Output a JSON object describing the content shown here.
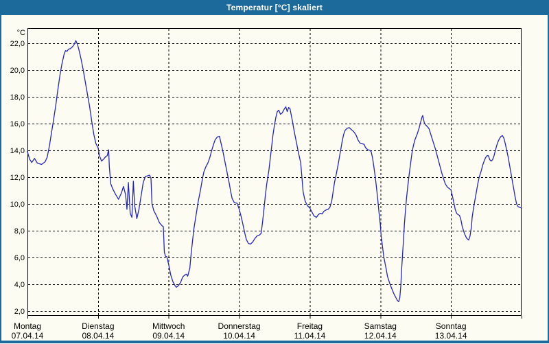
{
  "window": {
    "title": "Temperatur [°C] skaliert",
    "title_bar_color": "#1c699b",
    "border_color": "#1c699b",
    "background_color": "#fcfcf2"
  },
  "chart_data": {
    "type": "line",
    "title": "Temperatur [°C] skaliert",
    "y_unit_label": "°C",
    "ylabel": "Temperatur",
    "xlabel": "",
    "ylim": [
      1.6,
      23.1
    ],
    "y_ticks": [
      2,
      4,
      6,
      8,
      10,
      12,
      14,
      16,
      18,
      20,
      22
    ],
    "y_tick_labels": [
      "2,0",
      "4,0",
      "6,0",
      "8,0",
      "10,0",
      "12,0",
      "14,0",
      "16,0",
      "18,0",
      "20,0",
      "22,0"
    ],
    "grid": "dashed-black",
    "legend": "none",
    "line_color": "#2424bd",
    "x_categories": [
      {
        "name": "Montag",
        "date": "07.04.14"
      },
      {
        "name": "Dienstag",
        "date": "08.04.14"
      },
      {
        "name": "Mittwoch",
        "date": "09.04.14"
      },
      {
        "name": "Donnerstag",
        "date": "10.04.14"
      },
      {
        "name": "Freitag",
        "date": "11.04.14"
      },
      {
        "name": "Samstag",
        "date": "12.04.14"
      },
      {
        "name": "Sonntag",
        "date": "13.04.14"
      }
    ],
    "series": [
      {
        "name": "Temperatur [°C]",
        "x_unit": "days_since_monday_midnight",
        "points": [
          [
            0,
            13.9
          ],
          [
            0.03,
            13.35
          ],
          [
            0.06,
            13.1
          ],
          [
            0.1,
            13.4
          ],
          [
            0.14,
            13.05
          ],
          [
            0.2,
            12.95
          ],
          [
            0.25,
            13.15
          ],
          [
            0.28,
            13.5
          ],
          [
            0.31,
            14.3
          ],
          [
            0.34,
            15.3
          ],
          [
            0.37,
            16.3
          ],
          [
            0.4,
            17.3
          ],
          [
            0.43,
            18.5
          ],
          [
            0.46,
            19.6
          ],
          [
            0.49,
            20.5
          ],
          [
            0.52,
            21.2
          ],
          [
            0.54,
            21.45
          ],
          [
            0.56,
            21.4
          ],
          [
            0.58,
            21.55
          ],
          [
            0.61,
            21.6
          ],
          [
            0.64,
            21.75
          ],
          [
            0.66,
            21.9
          ],
          [
            0.685,
            22.2
          ],
          [
            0.71,
            21.9
          ],
          [
            0.73,
            21.5
          ],
          [
            0.76,
            20.8
          ],
          [
            0.79,
            20.0
          ],
          [
            0.82,
            19.1
          ],
          [
            0.85,
            18.2
          ],
          [
            0.88,
            17.3
          ],
          [
            0.91,
            16.2
          ],
          [
            0.94,
            15.2
          ],
          [
            0.97,
            14.5
          ],
          [
            1.0,
            14.2
          ],
          [
            1.02,
            13.6
          ],
          [
            1.05,
            13.2
          ],
          [
            1.08,
            13.35
          ],
          [
            1.11,
            13.55
          ],
          [
            1.13,
            13.6
          ],
          [
            1.15,
            14.05
          ],
          [
            1.16,
            12.8
          ],
          [
            1.18,
            11.5
          ],
          [
            1.21,
            11.1
          ],
          [
            1.25,
            10.7
          ],
          [
            1.29,
            10.35
          ],
          [
            1.33,
            10.8
          ],
          [
            1.36,
            11.3
          ],
          [
            1.39,
            10.7
          ],
          [
            1.41,
            9.6
          ],
          [
            1.43,
            11.6
          ],
          [
            1.455,
            9.3
          ],
          [
            1.48,
            9.0
          ],
          [
            1.5,
            11.7
          ],
          [
            1.52,
            9.85
          ],
          [
            1.55,
            8.9
          ],
          [
            1.58,
            9.6
          ],
          [
            1.61,
            10.6
          ],
          [
            1.64,
            11.6
          ],
          [
            1.67,
            12.05
          ],
          [
            1.7,
            12.1
          ],
          [
            1.73,
            12.15
          ],
          [
            1.75,
            11.9
          ],
          [
            1.765,
            10.0
          ],
          [
            1.79,
            9.5
          ],
          [
            1.83,
            9.1
          ],
          [
            1.87,
            8.6
          ],
          [
            1.91,
            8.35
          ],
          [
            1.925,
            8.3
          ],
          [
            1.94,
            6.4
          ],
          [
            1.955,
            6.1
          ],
          [
            1.975,
            6.05
          ],
          [
            2.0,
            5.5
          ],
          [
            2.03,
            4.7
          ],
          [
            2.06,
            4.2
          ],
          [
            2.09,
            3.9
          ],
          [
            2.11,
            3.78
          ],
          [
            2.14,
            3.9
          ],
          [
            2.17,
            4.15
          ],
          [
            2.2,
            4.55
          ],
          [
            2.23,
            4.7
          ],
          [
            2.255,
            4.75
          ],
          [
            2.27,
            4.6
          ],
          [
            2.3,
            5.2
          ],
          [
            2.32,
            6.3
          ],
          [
            2.34,
            7.3
          ],
          [
            2.36,
            8.2
          ],
          [
            2.39,
            9.2
          ],
          [
            2.42,
            10.2
          ],
          [
            2.45,
            11.0
          ],
          [
            2.48,
            11.9
          ],
          [
            2.5,
            12.4
          ],
          [
            2.53,
            12.8
          ],
          [
            2.56,
            13.1
          ],
          [
            2.585,
            13.5
          ],
          [
            2.61,
            14.0
          ],
          [
            2.64,
            14.5
          ],
          [
            2.66,
            14.8
          ],
          [
            2.69,
            15.0
          ],
          [
            2.72,
            15.05
          ],
          [
            2.74,
            14.6
          ],
          [
            2.77,
            13.9
          ],
          [
            2.8,
            13.1
          ],
          [
            2.83,
            12.3
          ],
          [
            2.86,
            11.5
          ],
          [
            2.88,
            10.9
          ],
          [
            2.9,
            10.4
          ],
          [
            2.93,
            10.1
          ],
          [
            2.97,
            10.05
          ],
          [
            3.0,
            9.6
          ],
          [
            3.03,
            9.0
          ],
          [
            3.06,
            8.3
          ],
          [
            3.08,
            7.8
          ],
          [
            3.1,
            7.35
          ],
          [
            3.13,
            7.05
          ],
          [
            3.16,
            7.0
          ],
          [
            3.19,
            7.15
          ],
          [
            3.22,
            7.4
          ],
          [
            3.25,
            7.6
          ],
          [
            3.28,
            7.65
          ],
          [
            3.31,
            7.8
          ],
          [
            3.33,
            8.6
          ],
          [
            3.35,
            9.6
          ],
          [
            3.37,
            10.6
          ],
          [
            3.39,
            11.5
          ],
          [
            3.42,
            12.5
          ],
          [
            3.44,
            13.4
          ],
          [
            3.46,
            14.3
          ],
          [
            3.48,
            15.2
          ],
          [
            3.5,
            15.9
          ],
          [
            3.52,
            16.5
          ],
          [
            3.54,
            16.9
          ],
          [
            3.56,
            17.0
          ],
          [
            3.585,
            16.7
          ],
          [
            3.61,
            16.8
          ],
          [
            3.64,
            17.1
          ],
          [
            3.66,
            17.25
          ],
          [
            3.68,
            16.9
          ],
          [
            3.7,
            17.2
          ],
          [
            3.72,
            17.1
          ],
          [
            3.75,
            16.3
          ],
          [
            3.78,
            15.4
          ],
          [
            3.81,
            14.6
          ],
          [
            3.84,
            13.8
          ],
          [
            3.87,
            13.1
          ],
          [
            3.89,
            11.9
          ],
          [
            3.905,
            10.9
          ],
          [
            3.935,
            10.2
          ],
          [
            3.97,
            9.85
          ],
          [
            4.0,
            9.7
          ],
          [
            4.03,
            9.4
          ],
          [
            4.06,
            9.1
          ],
          [
            4.095,
            9.0
          ],
          [
            4.12,
            9.2
          ],
          [
            4.15,
            9.3
          ],
          [
            4.175,
            9.25
          ],
          [
            4.2,
            9.45
          ],
          [
            4.23,
            9.55
          ],
          [
            4.26,
            9.6
          ],
          [
            4.285,
            9.75
          ],
          [
            4.31,
            10.2
          ],
          [
            4.33,
            10.9
          ],
          [
            4.35,
            11.6
          ],
          [
            4.37,
            12.1
          ],
          [
            4.4,
            12.9
          ],
          [
            4.42,
            13.5
          ],
          [
            4.44,
            14.1
          ],
          [
            4.46,
            14.7
          ],
          [
            4.48,
            15.2
          ],
          [
            4.5,
            15.5
          ],
          [
            4.53,
            15.65
          ],
          [
            4.56,
            15.7
          ],
          [
            4.59,
            15.55
          ],
          [
            4.61,
            15.45
          ],
          [
            4.63,
            15.35
          ],
          [
            4.66,
            15.1
          ],
          [
            4.68,
            14.8
          ],
          [
            4.71,
            14.55
          ],
          [
            4.74,
            14.5
          ],
          [
            4.77,
            14.45
          ],
          [
            4.79,
            14.2
          ],
          [
            4.82,
            14.05
          ],
          [
            4.85,
            14.0
          ],
          [
            4.87,
            13.9
          ],
          [
            4.89,
            13.4
          ],
          [
            4.91,
            12.7
          ],
          [
            4.93,
            11.9
          ],
          [
            4.95,
            11.0
          ],
          [
            4.965,
            10.2
          ],
          [
            4.98,
            9.4
          ],
          [
            5.0,
            8.4
          ],
          [
            5.01,
            7.7
          ],
          [
            5.03,
            6.8
          ],
          [
            5.05,
            6.0
          ],
          [
            5.08,
            5.2
          ],
          [
            5.1,
            4.6
          ],
          [
            5.13,
            4.1
          ],
          [
            5.16,
            3.7
          ],
          [
            5.19,
            3.3
          ],
          [
            5.22,
            3.0
          ],
          [
            5.24,
            2.8
          ],
          [
            5.26,
            2.7
          ],
          [
            5.275,
            3.0
          ],
          [
            5.29,
            3.9
          ],
          [
            5.3,
            5.0
          ],
          [
            5.315,
            6.3
          ],
          [
            5.33,
            7.5
          ],
          [
            5.34,
            8.5
          ],
          [
            5.355,
            9.5
          ],
          [
            5.37,
            10.4
          ],
          [
            5.39,
            11.4
          ],
          [
            5.41,
            12.3
          ],
          [
            5.43,
            13.1
          ],
          [
            5.45,
            13.9
          ],
          [
            5.47,
            14.4
          ],
          [
            5.49,
            14.8
          ],
          [
            5.52,
            15.2
          ],
          [
            5.55,
            15.7
          ],
          [
            5.57,
            16.1
          ],
          [
            5.59,
            16.5
          ],
          [
            5.6,
            16.6
          ],
          [
            5.62,
            16.1
          ],
          [
            5.64,
            15.9
          ],
          [
            5.67,
            15.75
          ],
          [
            5.69,
            15.6
          ],
          [
            5.72,
            15.1
          ],
          [
            5.75,
            14.6
          ],
          [
            5.78,
            14.1
          ],
          [
            5.81,
            13.5
          ],
          [
            5.84,
            12.9
          ],
          [
            5.87,
            12.3
          ],
          [
            5.9,
            11.8
          ],
          [
            5.92,
            11.5
          ],
          [
            5.95,
            11.25
          ],
          [
            6.0,
            11.05
          ],
          [
            6.02,
            10.6
          ],
          [
            6.04,
            10.1
          ],
          [
            6.06,
            9.6
          ],
          [
            6.08,
            9.3
          ],
          [
            6.1,
            9.2
          ],
          [
            6.12,
            9.15
          ],
          [
            6.14,
            8.85
          ],
          [
            6.16,
            8.3
          ],
          [
            6.19,
            7.8
          ],
          [
            6.22,
            7.45
          ],
          [
            6.25,
            7.3
          ],
          [
            6.27,
            7.6
          ],
          [
            6.29,
            8.3
          ],
          [
            6.3,
            9.0
          ],
          [
            6.32,
            9.7
          ],
          [
            6.34,
            10.3
          ],
          [
            6.36,
            10.9
          ],
          [
            6.38,
            11.5
          ],
          [
            6.4,
            12.0
          ],
          [
            6.43,
            12.5
          ],
          [
            6.45,
            12.9
          ],
          [
            6.47,
            13.2
          ],
          [
            6.49,
            13.45
          ],
          [
            6.51,
            13.6
          ],
          [
            6.53,
            13.6
          ],
          [
            6.55,
            13.3
          ],
          [
            6.57,
            13.2
          ],
          [
            6.59,
            13.3
          ],
          [
            6.61,
            13.6
          ],
          [
            6.63,
            14.0
          ],
          [
            6.65,
            14.4
          ],
          [
            6.67,
            14.7
          ],
          [
            6.69,
            14.9
          ],
          [
            6.71,
            15.05
          ],
          [
            6.73,
            15.1
          ],
          [
            6.75,
            14.9
          ],
          [
            6.77,
            14.5
          ],
          [
            6.79,
            14.0
          ],
          [
            6.81,
            13.5
          ],
          [
            6.83,
            12.9
          ],
          [
            6.85,
            12.3
          ],
          [
            6.87,
            11.7
          ],
          [
            6.89,
            11.1
          ],
          [
            6.91,
            10.5
          ],
          [
            6.93,
            10.0
          ],
          [
            6.95,
            9.8
          ],
          [
            6.97,
            9.75
          ],
          [
            7.0,
            9.7
          ]
        ]
      }
    ]
  }
}
